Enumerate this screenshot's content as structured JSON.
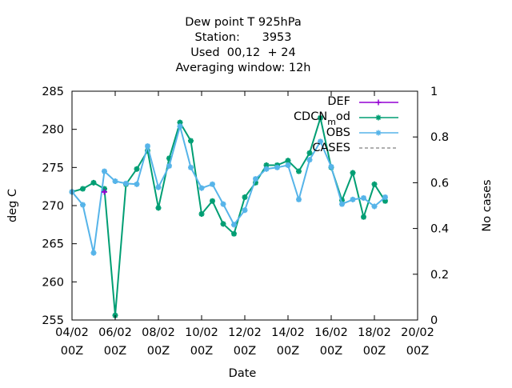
{
  "chart_data": {
    "type": "line",
    "title_lines": [
      "Dew point T 925hPa",
      "Station:      3953",
      "Used  00,12  + 24",
      "Averaging window: 12h"
    ],
    "xlabel": "Date",
    "ylabel": "deg C",
    "y2label": "No cases",
    "x_ticks": [
      {
        "l1": "04/02",
        "l2": "00Z"
      },
      {
        "l1": "06/02",
        "l2": "00Z"
      },
      {
        "l1": "08/02",
        "l2": "00Z"
      },
      {
        "l1": "10/02",
        "l2": "00Z"
      },
      {
        "l1": "12/02",
        "l2": "00Z"
      },
      {
        "l1": "14/02",
        "l2": "00Z"
      },
      {
        "l1": "16/02",
        "l2": "00Z"
      },
      {
        "l1": "18/02",
        "l2": "00Z"
      },
      {
        "l1": "20/02",
        "l2": "00Z"
      }
    ],
    "x_range": [
      "04/02 00Z",
      "20/02 00Z"
    ],
    "y_range": [
      255,
      285
    ],
    "y_ticks": [
      "255",
      "260",
      "265",
      "270",
      "275",
      "280",
      "285"
    ],
    "y2_range": [
      0,
      1
    ],
    "y2_ticks": [
      "0",
      "0.2",
      "0.4",
      "0.6",
      "0.8",
      "1"
    ],
    "legend_position": "top-right",
    "series": [
      {
        "name": "DEF",
        "color": "#9400d3",
        "marker": "plus",
        "x": [
          "05/02 12Z"
        ],
        "y": [
          271.8
        ]
      },
      {
        "name": "CDCN_mod",
        "name_main": "CDCN",
        "name_sub": "m",
        "name_tail": "od",
        "color": "#009e73",
        "marker": "star",
        "x": [
          "04/02 00Z",
          "04/02 12Z",
          "05/02 00Z",
          "05/02 12Z",
          "06/02 00Z",
          "06/02 12Z",
          "07/02 00Z",
          "07/02 12Z",
          "08/02 00Z",
          "08/02 12Z",
          "09/02 00Z",
          "09/02 12Z",
          "10/02 00Z",
          "10/02 12Z",
          "11/02 00Z",
          "11/02 12Z",
          "12/02 00Z",
          "12/02 12Z",
          "13/02 00Z",
          "13/02 12Z",
          "14/02 00Z",
          "14/02 12Z",
          "15/02 00Z",
          "15/02 12Z",
          "16/02 00Z",
          "16/02 12Z",
          "17/02 00Z",
          "17/02 12Z",
          "18/02 00Z",
          "18/02 12Z"
        ],
        "y": [
          271.8,
          272.2,
          273.0,
          272.2,
          255.6,
          272.8,
          274.8,
          277.2,
          269.7,
          276.2,
          280.9,
          278.5,
          268.9,
          270.6,
          267.6,
          266.3,
          271.1,
          273.0,
          275.3,
          275.3,
          275.9,
          274.5,
          276.9,
          281.5,
          275.0,
          270.7,
          274.3,
          268.5,
          272.8,
          270.6
        ]
      },
      {
        "name": "OBS",
        "color": "#56b4e9",
        "marker": "star",
        "x": [
          "04/02 00Z",
          "04/02 12Z",
          "05/02 00Z",
          "05/02 12Z",
          "06/02 00Z",
          "06/02 12Z",
          "07/02 00Z",
          "07/02 12Z",
          "08/02 00Z",
          "08/02 12Z",
          "09/02 00Z",
          "09/02 12Z",
          "10/02 00Z",
          "10/02 12Z",
          "11/02 00Z",
          "11/02 12Z",
          "12/02 00Z",
          "12/02 12Z",
          "13/02 00Z",
          "13/02 12Z",
          "14/02 00Z",
          "14/02 12Z",
          "15/02 00Z",
          "15/02 12Z",
          "16/02 00Z",
          "16/02 12Z",
          "17/02 00Z",
          "17/02 12Z",
          "18/02 00Z",
          "18/02 12Z"
        ],
        "y": [
          271.8,
          270.1,
          263.8,
          274.5,
          273.2,
          272.9,
          272.8,
          277.8,
          272.4,
          275.2,
          280.4,
          275.0,
          272.3,
          272.8,
          270.2,
          267.5,
          269.4,
          273.5,
          274.8,
          275.0,
          275.3,
          270.8,
          276.0,
          278.4,
          275.1,
          270.2,
          270.8,
          271.0,
          269.9,
          271.1
        ]
      },
      {
        "name": "CASES",
        "color": "#808080",
        "marker": "none",
        "dashed": true,
        "x": [],
        "y": []
      }
    ]
  }
}
